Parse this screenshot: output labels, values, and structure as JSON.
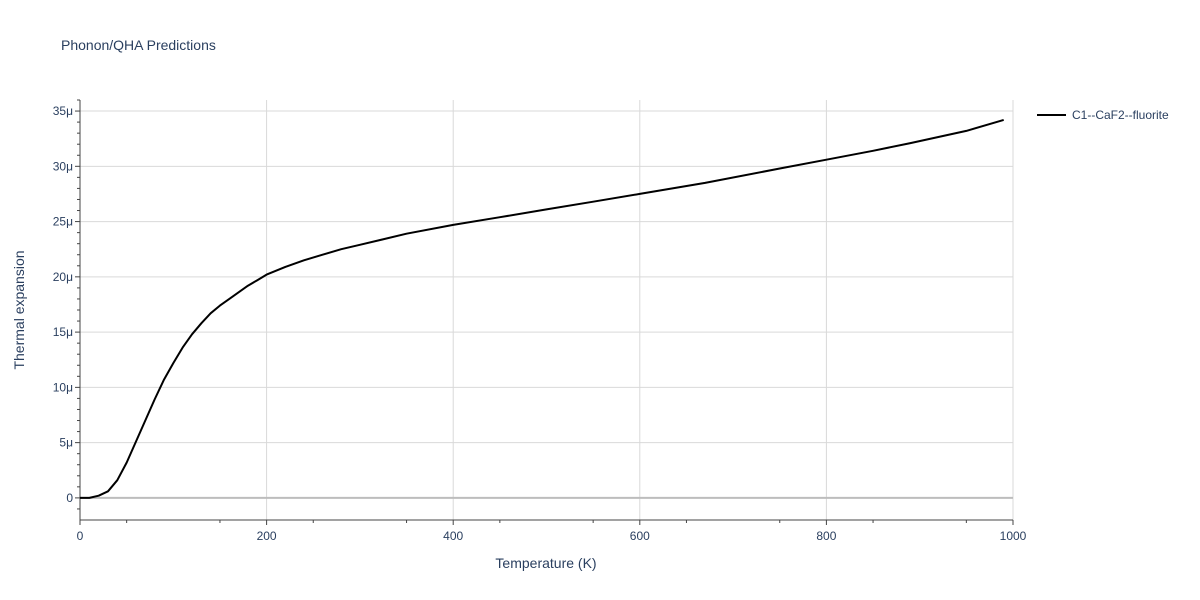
{
  "chart_data": {
    "type": "line",
    "title": "Phonon/QHA Predictions",
    "xlabel": "Temperature (K)",
    "ylabel": "Thermal expansion",
    "xlim": [
      0,
      1000
    ],
    "ylim": [
      -2,
      36
    ],
    "x_ticks": [
      0,
      200,
      400,
      600,
      800,
      1000
    ],
    "x_tick_labels": [
      "0",
      "200",
      "400",
      "600",
      "800",
      "1000"
    ],
    "y_ticks": [
      0,
      5,
      10,
      15,
      20,
      25,
      30,
      35
    ],
    "y_tick_labels": [
      "0",
      "5μ",
      "10μ",
      "15μ",
      "20μ",
      "25μ",
      "30μ",
      "35μ"
    ],
    "y_unit": "μ (×1e-6 K⁻¹)",
    "grid": true,
    "legend_position": "top-right",
    "line_color": "#000000",
    "grid_color": "#d9d9d9",
    "series": [
      {
        "name": "C1--CaF2--fluorite",
        "x": [
          0,
          10,
          20,
          30,
          40,
          50,
          60,
          70,
          80,
          90,
          100,
          110,
          120,
          130,
          140,
          150,
          160,
          170,
          180,
          190,
          200,
          220,
          240,
          260,
          280,
          300,
          320,
          350,
          400,
          450,
          500,
          550,
          600,
          670,
          750,
          800,
          850,
          890,
          950,
          990
        ],
        "y": [
          0,
          0,
          0.2,
          0.6,
          1.6,
          3.2,
          5.1,
          7.0,
          8.9,
          10.7,
          12.2,
          13.6,
          14.8,
          15.8,
          16.7,
          17.4,
          18.0,
          18.6,
          19.2,
          19.7,
          20.2,
          20.9,
          21.5,
          22.0,
          22.5,
          22.9,
          23.3,
          23.9,
          24.7,
          25.4,
          26.1,
          26.8,
          27.5,
          28.5,
          29.8,
          30.6,
          31.4,
          32.1,
          33.2,
          34.2
        ]
      }
    ]
  }
}
